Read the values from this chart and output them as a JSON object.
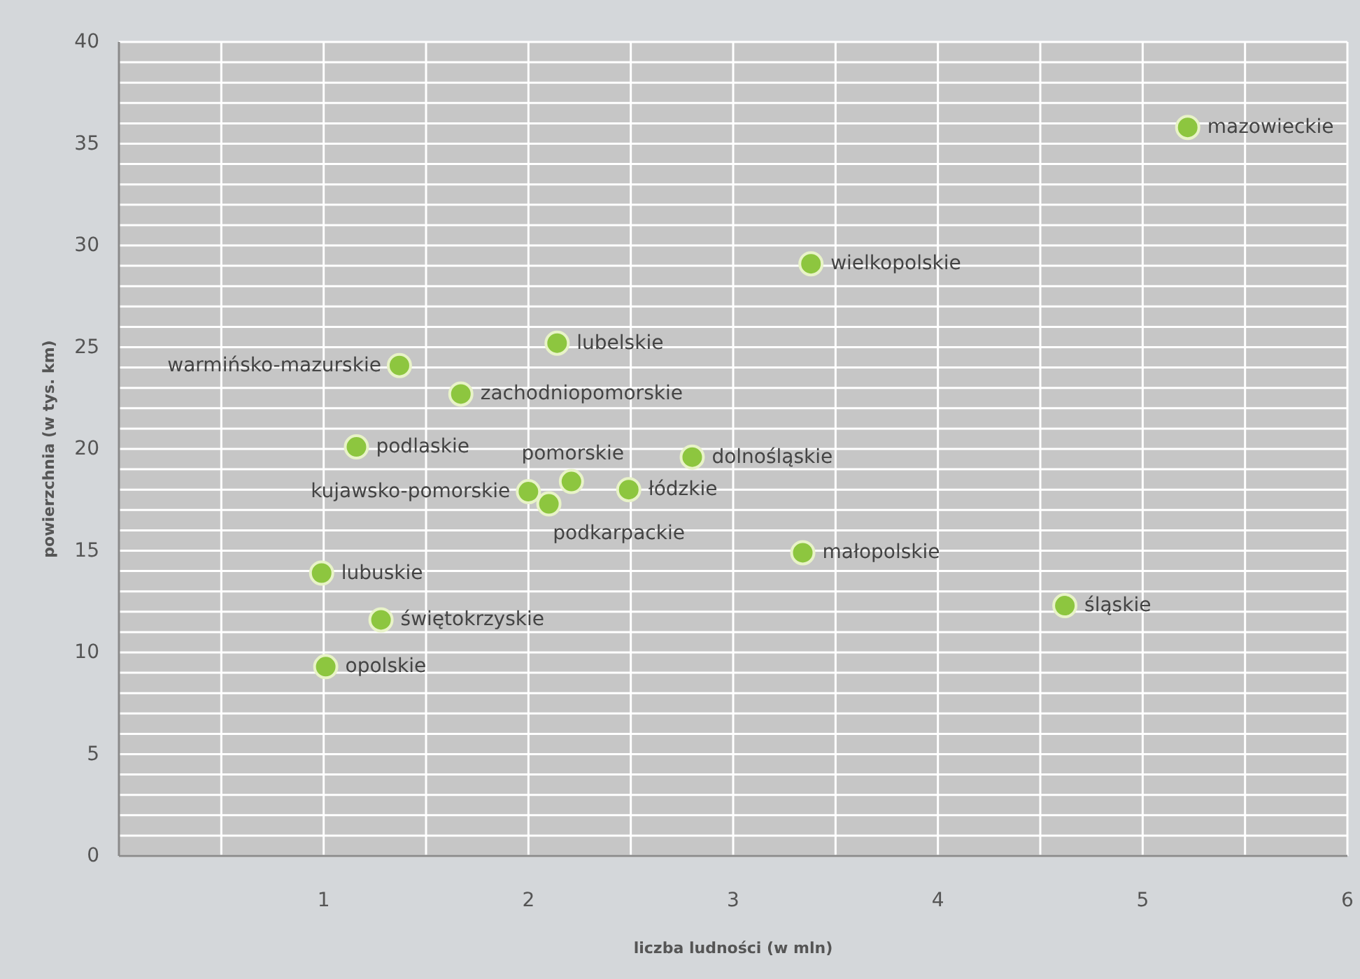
{
  "chart_data": {
    "type": "scatter",
    "xlabel": "liczba ludności (w mln)",
    "ylabel": "powierzchnia (w tys. km)",
    "xlim": [
      0,
      6
    ],
    "ylim": [
      0,
      40
    ],
    "xticks": [
      {
        "value": 0.5,
        "label": null
      },
      1,
      {
        "value": 1.5,
        "label": null
      },
      2,
      {
        "value": 2.5,
        "label": null
      },
      3,
      {
        "value": 3.5,
        "label": null
      },
      4,
      {
        "value": 4.5,
        "label": null
      },
      5,
      {
        "value": 5.5,
        "label": null
      },
      6
    ],
    "yticks": [
      0,
      {
        "value": 1,
        "label": null
      },
      {
        "value": 2,
        "label": null
      },
      {
        "value": 3,
        "label": null
      },
      {
        "value": 4,
        "label": null
      },
      5,
      {
        "value": 6,
        "label": null
      },
      {
        "value": 7,
        "label": null
      },
      {
        "value": 8,
        "label": null
      },
      {
        "value": 9,
        "label": null
      },
      10,
      {
        "value": 11,
        "label": null
      },
      {
        "value": 12,
        "label": null
      },
      {
        "value": 13,
        "label": null
      },
      {
        "value": 14,
        "label": null
      },
      15,
      {
        "value": 16,
        "label": null
      },
      {
        "value": 17,
        "label": null
      },
      {
        "value": 18,
        "label": null
      },
      {
        "value": 19,
        "label": null
      },
      20,
      {
        "value": 21,
        "label": null
      },
      {
        "value": 22,
        "label": null
      },
      {
        "value": 23,
        "label": null
      },
      {
        "value": 24,
        "label": null
      },
      25,
      {
        "value": 26,
        "label": null
      },
      {
        "value": 27,
        "label": null
      },
      {
        "value": 28,
        "label": null
      },
      {
        "value": 29,
        "label": null
      },
      30,
      {
        "value": 31,
        "label": null
      },
      {
        "value": 32,
        "label": null
      },
      {
        "value": 33,
        "label": null
      },
      {
        "value": 34,
        "label": null
      },
      35,
      {
        "value": 36,
        "label": null
      },
      {
        "value": 37,
        "label": null
      },
      {
        "value": 38,
        "label": null
      },
      {
        "value": 39,
        "label": null
      },
      40
    ],
    "grid": true,
    "marker": "circle",
    "series": [
      {
        "color": "#8dc63f",
        "x": [
          5.22,
          3.38,
          2.14,
          1.37,
          1.67,
          1.16,
          2.8,
          2.21,
          2.0,
          2.1,
          2.49,
          3.34,
          4.62,
          0.99,
          1.28,
          1.01
        ],
        "values": [
          35.8,
          29.1,
          25.2,
          24.1,
          22.7,
          20.1,
          19.6,
          18.4,
          17.9,
          17.3,
          18.0,
          14.9,
          12.3,
          13.9,
          11.6,
          9.3
        ]
      }
    ],
    "annotations": [
      {
        "text": "mazowieckie",
        "x": 5.22,
        "y": 35.8
      },
      {
        "text": "wielkopolskie",
        "x": 3.38,
        "y": 29.1
      },
      {
        "text": "lubelskie",
        "x": 2.14,
        "y": 25.2
      },
      {
        "text": "warmińsko-mazurskie",
        "x": 1.37,
        "y": 24.1
      },
      {
        "text": "zachodniopomorskie",
        "x": 1.67,
        "y": 22.7
      },
      {
        "text": "podlaskie",
        "x": 1.16,
        "y": 20.1
      },
      {
        "text": "dolnośląskie",
        "x": 2.8,
        "y": 19.6
      },
      {
        "text": "pomorskie",
        "x": 2.21,
        "y": 18.4
      },
      {
        "text": "kujawsko-pomorskie",
        "x": 2.0,
        "y": 17.9
      },
      {
        "text": "podkarpackie",
        "x": 2.1,
        "y": 17.3
      },
      {
        "text": "łódzkie",
        "x": 2.49,
        "y": 18.0
      },
      {
        "text": "małopolskie",
        "x": 3.34,
        "y": 14.9
      },
      {
        "text": "śląskie",
        "x": 4.62,
        "y": 12.3
      },
      {
        "text": "lubuskie",
        "x": 0.99,
        "y": 13.9
      },
      {
        "text": "świętokrzyskie",
        "x": 1.28,
        "y": 11.6
      },
      {
        "text": "opolskie",
        "x": 1.01,
        "y": 9.3
      }
    ]
  }
}
